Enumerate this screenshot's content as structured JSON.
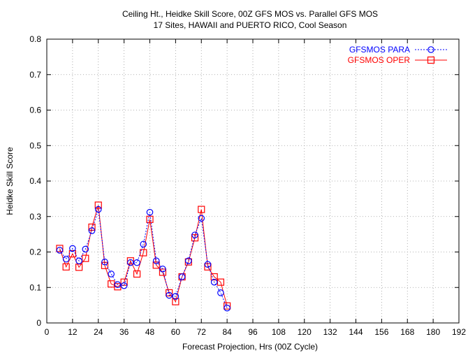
{
  "chart_data": {
    "type": "line",
    "title": "Ceiling Ht., Heidke Skill Score, 00Z GFS MOS vs. Parallel GFS MOS",
    "subtitle": "17 Sites, HAWAII and PUERTO RICO, Cool Season",
    "xlabel": "Forecast Projection, Hrs (00Z Cycle)",
    "ylabel": "Heidke Skill Score",
    "xlim": [
      0,
      192
    ],
    "ylim": [
      0,
      0.8
    ],
    "xticks": [
      "0",
      "12",
      "24",
      "36",
      "48",
      "60",
      "72",
      "84",
      "96",
      "108",
      "120",
      "132",
      "144",
      "156",
      "168",
      "180",
      "192"
    ],
    "yticks": [
      "0",
      "0.1",
      "0.2",
      "0.3",
      "0.4",
      "0.5",
      "0.6",
      "0.7",
      "0.8"
    ],
    "grid": true,
    "legend_position": "top-right",
    "x": [
      6,
      9,
      12,
      15,
      18,
      21,
      24,
      27,
      30,
      33,
      36,
      39,
      42,
      45,
      48,
      51,
      54,
      57,
      60,
      63,
      66,
      69,
      72,
      75,
      78,
      81,
      84
    ],
    "series": [
      {
        "name": "GFSMOS PARA",
        "color": "#0000ff",
        "dash": "dotted",
        "marker": "circle",
        "values": [
          0.205,
          0.18,
          0.21,
          0.175,
          0.208,
          0.26,
          0.32,
          0.172,
          0.138,
          0.108,
          0.105,
          0.17,
          0.17,
          0.222,
          0.312,
          0.175,
          0.152,
          0.078,
          0.075,
          0.13,
          0.175,
          0.248,
          0.295,
          0.165,
          0.115,
          0.085,
          0.042
        ]
      },
      {
        "name": "GFSMOS OPER",
        "color": "#ff0000",
        "dash": "solid",
        "marker": "square",
        "values": [
          0.21,
          0.158,
          0.195,
          0.157,
          0.182,
          0.27,
          0.332,
          0.162,
          0.11,
          0.102,
          0.115,
          0.175,
          0.138,
          0.198,
          0.292,
          0.163,
          0.143,
          0.085,
          0.06,
          0.13,
          0.172,
          0.24,
          0.32,
          0.158,
          0.13,
          0.115,
          0.048
        ]
      }
    ]
  }
}
